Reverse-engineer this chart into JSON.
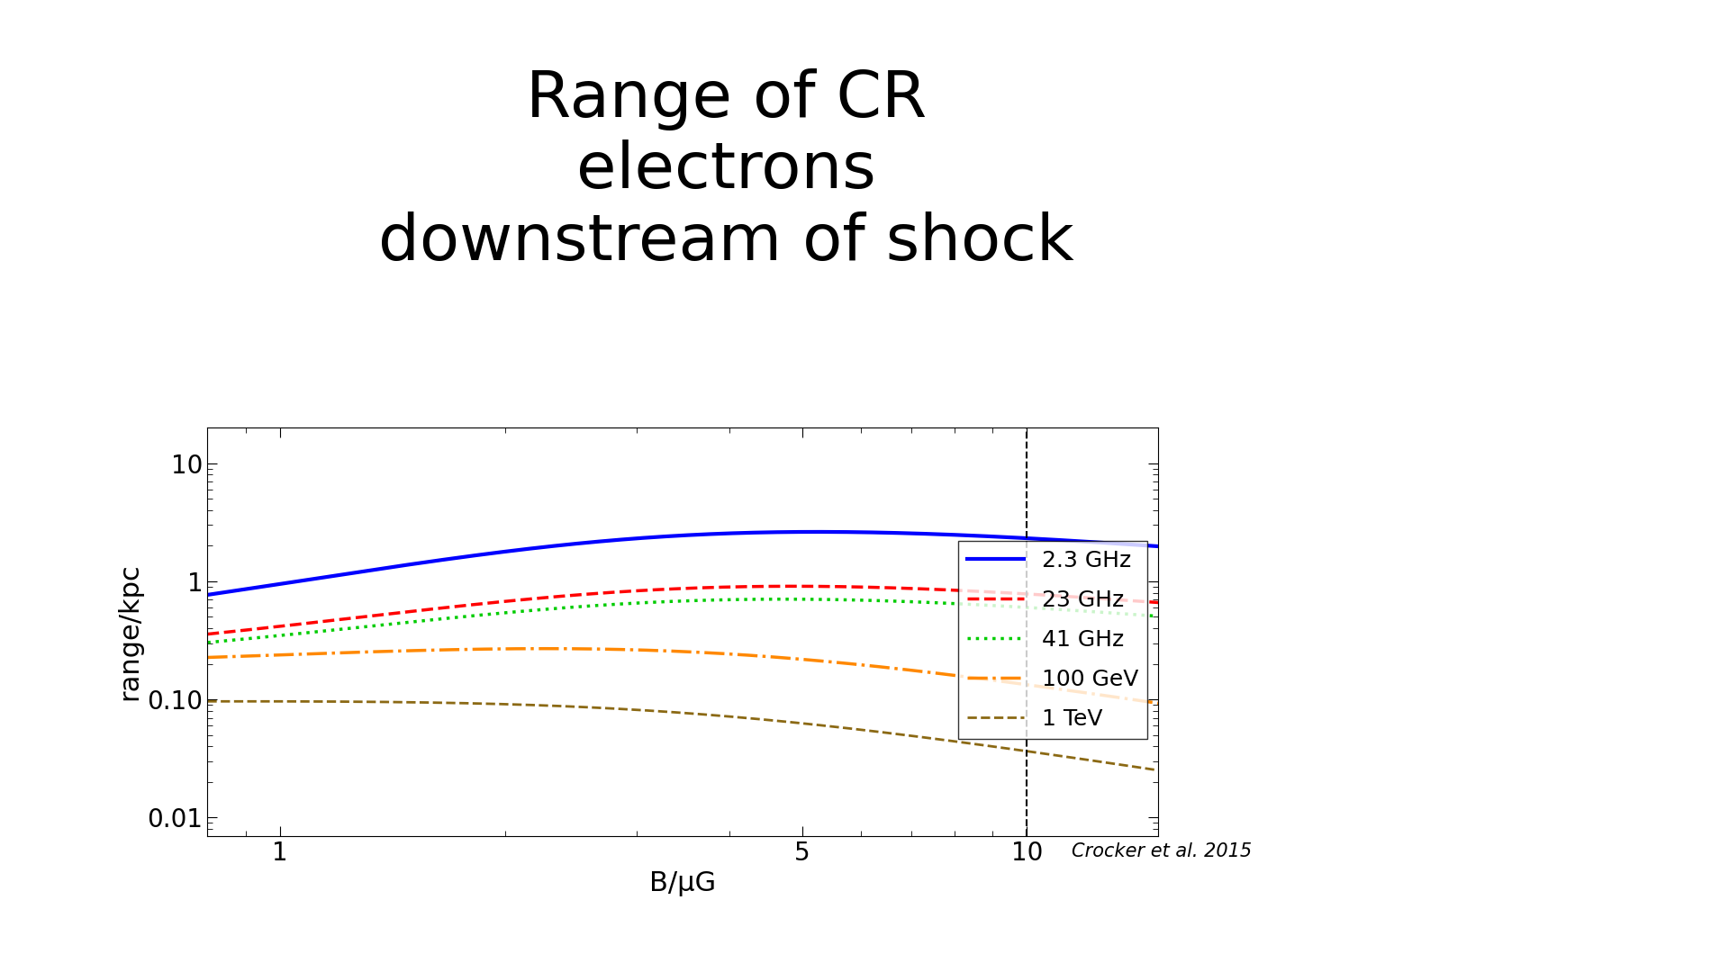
{
  "title": "Range of CR\nelectrons\ndownstream of shock",
  "xlabel": "B/μG",
  "ylabel": "range/kpc",
  "credit": "Crocker et al. 2015",
  "xlim": [
    0.8,
    15
  ],
  "ylim": [
    0.007,
    20
  ],
  "vline_x": 10,
  "legend_entries": [
    "2.3 GHz",
    "23 GHz",
    "41 GHz",
    "100 GeV",
    "1 TeV"
  ],
  "line_colors": [
    "#0000ff",
    "#ff0000",
    "#00cc00",
    "#ff8800",
    "#8B6914"
  ],
  "line_styles": [
    "-",
    "--",
    ":",
    "-.",
    "--"
  ],
  "line_widths": [
    3.0,
    2.5,
    2.5,
    2.5,
    2.0
  ],
  "background_color": "#ffffff",
  "title_fontsize": 52,
  "axis_fontsize": 22,
  "tick_fontsize": 20,
  "legend_fontsize": 18,
  "fig_width": 19.2,
  "fig_height": 10.8
}
